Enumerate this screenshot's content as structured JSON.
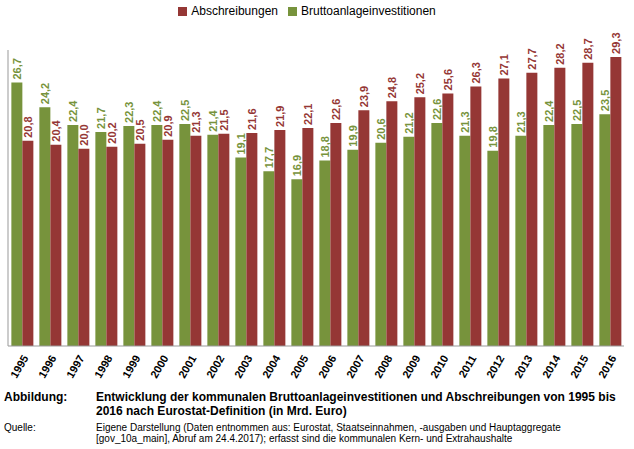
{
  "chart_data": {
    "type": "bar",
    "title_label": "Abbildung:",
    "title": "Entwicklung der kommunalen Bruttoanlageinvestitionen und Abschreibungen von 1995 bis 2016 nach Eurostat-Definition (in Mrd. Euro)",
    "source_label": "Quelle:",
    "source": "Eigene Darstellung (Daten entnommen aus: Eurostat, Staatseinnahmen, -ausgaben und Hauptaggregate [gov_10a_main], Abruf am 24.4.2017); erfasst sind die kommunalen Kern- und Extrahaushalte",
    "categories": [
      "1995",
      "1996",
      "1997",
      "1998",
      "1999",
      "2000",
      "2001",
      "2002",
      "2003",
      "2004",
      "2005",
      "2006",
      "2007",
      "2008",
      "2009",
      "2010",
      "2011",
      "2012",
      "2013",
      "2014",
      "2015",
      "2016"
    ],
    "series": [
      {
        "name": "Bruttoanlageinvestitionen",
        "color": "#77933c",
        "values": [
          26.7,
          24.2,
          22.4,
          21.7,
          22.3,
          22.4,
          22.5,
          21.4,
          19.1,
          17.7,
          16.9,
          18.8,
          19.9,
          20.6,
          21.2,
          22.6,
          21.3,
          19.8,
          21.3,
          22.4,
          22.5,
          23.5
        ],
        "value_labels": [
          "26,7",
          "24,2",
          "22,4",
          "21,7",
          "22,3",
          "22,4",
          "22,5",
          "21,4",
          "19,1",
          "17,7",
          "16,9",
          "18,8",
          "19,9",
          "20,6",
          "21,2",
          "22,6",
          "21,3",
          "19,8",
          "21,3",
          "22,4",
          "22,5",
          "23,5"
        ]
      },
      {
        "name": "Abschreibungen",
        "color": "#953735",
        "values": [
          20.8,
          20.4,
          20.0,
          20.2,
          20.5,
          20.9,
          21.3,
          21.5,
          21.6,
          21.9,
          22.1,
          22.6,
          23.9,
          24.8,
          25.2,
          25.6,
          26.3,
          27.1,
          27.7,
          28.2,
          28.7,
          29.3
        ],
        "value_labels": [
          "20,8",
          "20,4",
          "20,0",
          "20,2",
          "20,5",
          "20,9",
          "21,3",
          "21,5",
          "21,6",
          "21,9",
          "22,1",
          "22,6",
          "23,9",
          "24,8",
          "25,2",
          "25,6",
          "26,3",
          "27,1",
          "27,7",
          "28,2",
          "28,7",
          "29,3"
        ]
      }
    ],
    "ylim": [
      0,
      30
    ],
    "data_labels": true,
    "tick_labels": "x",
    "legend": "top",
    "grid": false
  }
}
